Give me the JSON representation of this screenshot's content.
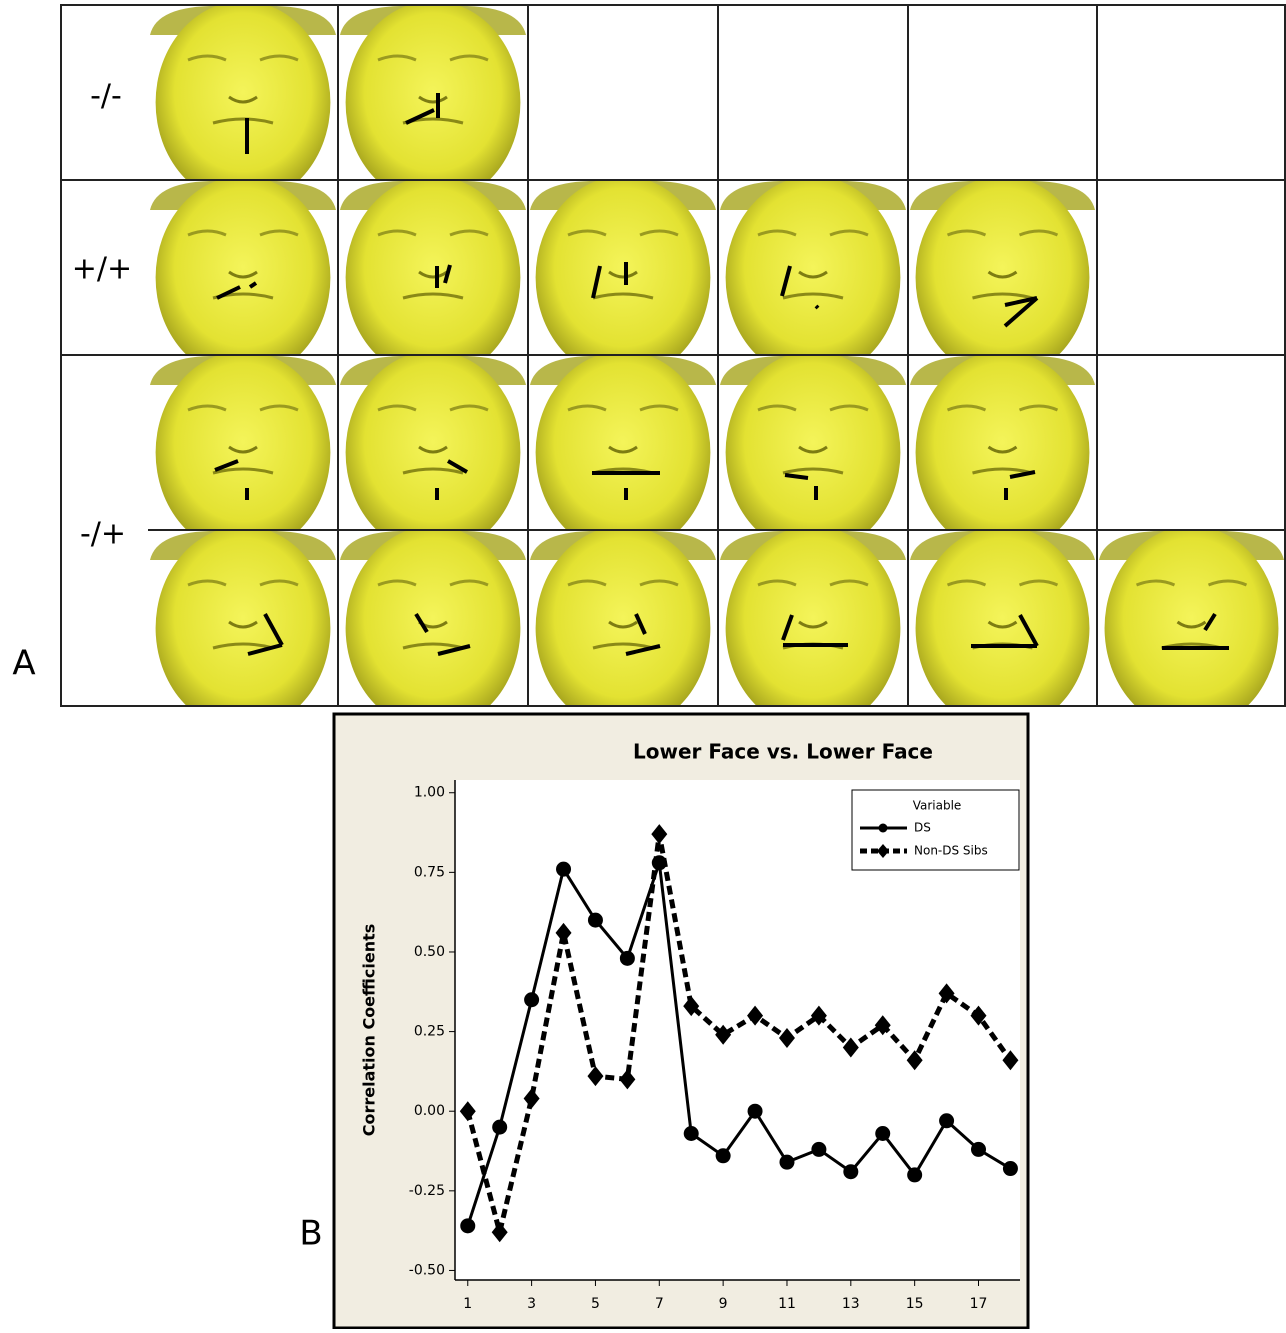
{
  "panel_labels": [
    "A",
    "B"
  ],
  "row_labels": [
    "-/-",
    "+/+",
    "-/+"
  ],
  "chart_data": {
    "type": "line",
    "title": "Lower Face vs. Lower Face",
    "y_label": "Correlation Coefficients",
    "legend_title": "Variable",
    "legend": "upper right",
    "x": [
      1,
      2,
      3,
      4,
      5,
      6,
      7,
      8,
      9,
      10,
      11,
      12,
      13,
      14,
      15,
      16,
      17,
      18
    ],
    "series": [
      {
        "name": "DS",
        "color": "#000000",
        "values": [
          -0.36,
          -0.05,
          0.35,
          0.76,
          0.6,
          0.48,
          0.78,
          -0.07,
          -0.14,
          0.0,
          -0.16,
          -0.12,
          -0.19,
          -0.07,
          -0.2,
          -0.03,
          -0.12,
          -0.18
        ]
      },
      {
        "name": "Non-DS Sibs",
        "color": "#000000",
        "values": [
          0.0,
          -0.38,
          0.04,
          0.56,
          0.11,
          0.1,
          0.87,
          0.33,
          0.24,
          0.3,
          0.23,
          0.3,
          0.2,
          0.27,
          0.16,
          0.37,
          0.3,
          0.16
        ]
      }
    ],
    "xlim": [
      0.6,
      18.3
    ],
    "xticks": [
      1,
      3,
      5,
      7,
      9,
      11,
      13,
      15,
      17
    ],
    "ylim": [
      -0.53,
      1.04
    ],
    "yticks": [
      {
        "value": -0.5,
        "label": "-0.50"
      },
      {
        "value": -0.25,
        "label": "-0.25"
      },
      {
        "value": 0,
        "label": "0.00"
      },
      {
        "value": 0.25,
        "label": "0.25"
      },
      {
        "value": 0.5,
        "label": "0.50"
      },
      {
        "value": 0.75,
        "label": "0.75"
      },
      {
        "value": 1,
        "label": "1.00"
      }
    ]
  }
}
